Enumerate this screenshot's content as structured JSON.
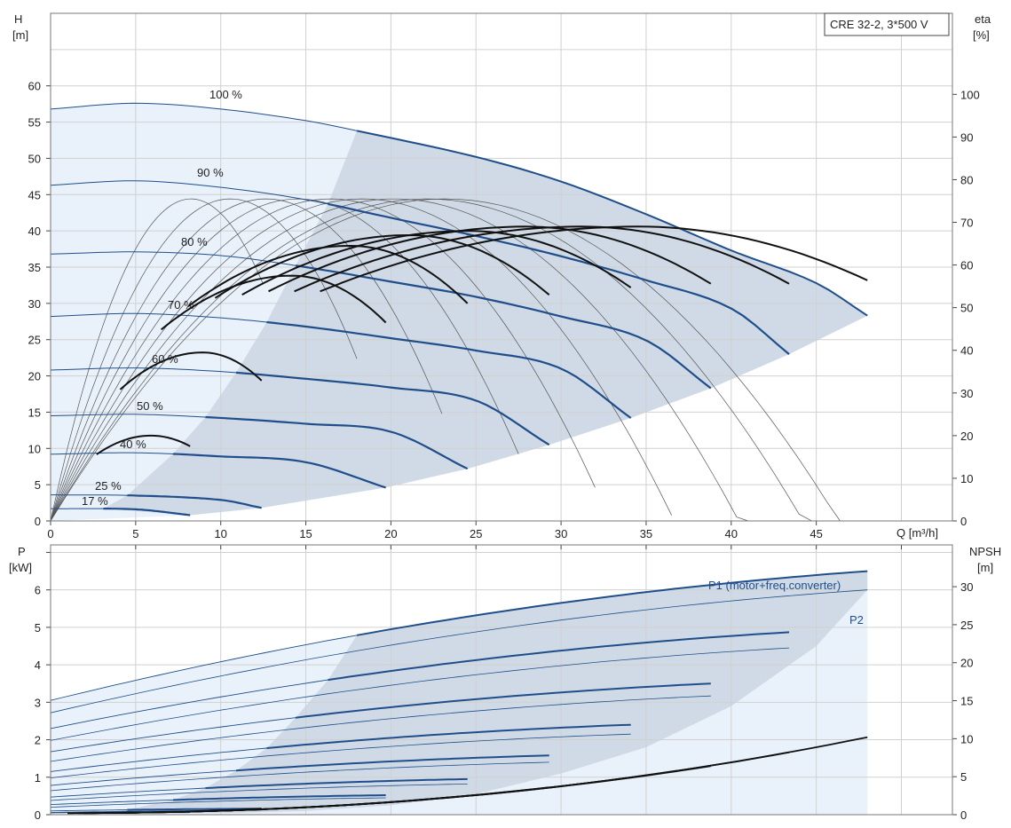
{
  "title_box": "CRE 32-2, 3*500 V",
  "colors": {
    "range_light": "#e9f2fb",
    "range_dark": "#cfdae6",
    "blue_curve": "#1f4e8a",
    "thin_curve": "#555555",
    "eff_curve": "#111111",
    "grid": "#d0d0d0"
  },
  "chart_data": [
    {
      "id": "top",
      "type": "line",
      "xlabel": "Q [m³/h]",
      "ylabel_left": [
        "H",
        "[m]"
      ],
      "ylabel_right": [
        "eta",
        "[%]"
      ],
      "xlim": [
        0,
        53
      ],
      "ylim_left": [
        0,
        70
      ],
      "ylim_right": [
        0,
        119
      ],
      "xticks": [
        0,
        5,
        10,
        15,
        20,
        25,
        30,
        35,
        40,
        45
      ],
      "yticks_left": [
        0,
        5,
        10,
        15,
        20,
        25,
        30,
        35,
        40,
        45,
        50,
        55,
        60
      ],
      "yticks_right": [
        0,
        10,
        20,
        30,
        40,
        50,
        60,
        70,
        80,
        90,
        100
      ],
      "grid": true,
      "head_curves": [
        {
          "label": "100 %",
          "points": [
            [
              0,
              56.8
            ],
            [
              5,
              57.6
            ],
            [
              10,
              56.8
            ],
            [
              15,
              55.2
            ],
            [
              18,
              53.8
            ],
            [
              25,
              50.2
            ],
            [
              30,
              46.8
            ],
            [
              35,
              42.3
            ],
            [
              40,
              37.3
            ],
            [
              45,
              32.8
            ],
            [
              48,
              28.3
            ]
          ],
          "bold_from": 18
        },
        {
          "label": "90 %",
          "points": [
            [
              0,
              46.3
            ],
            [
              5,
              46.9
            ],
            [
              10,
              46
            ],
            [
              15,
              44.3
            ],
            [
              20,
              41.8
            ],
            [
              25,
              39.3
            ],
            [
              30,
              36.5
            ],
            [
              35,
              33.2
            ],
            [
              40,
              29.3
            ],
            [
              43.4,
              23
            ]
          ],
          "bold_from": 16.3
        },
        {
          "label": "80 %",
          "points": [
            [
              0,
              36.8
            ],
            [
              5,
              37.1
            ],
            [
              10,
              36.6
            ],
            [
              15,
              35
            ],
            [
              20,
              33
            ],
            [
              25,
              30.9
            ],
            [
              30,
              28.2
            ],
            [
              35,
              24.9
            ],
            [
              38.8,
              18.3
            ]
          ],
          "bold_from": 14.4
        },
        {
          "label": "70 %",
          "points": [
            [
              0,
              28.2
            ],
            [
              5,
              28.6
            ],
            [
              10,
              28
            ],
            [
              15,
              26.8
            ],
            [
              20,
              25.2
            ],
            [
              25,
              23.5
            ],
            [
              30,
              21
            ],
            [
              34.1,
              14.2
            ]
          ],
          "bold_from": 12.7
        },
        {
          "label": "60 %",
          "points": [
            [
              0,
              20.8
            ],
            [
              5,
              21.1
            ],
            [
              10,
              20.6
            ],
            [
              15,
              19.6
            ],
            [
              20,
              18.4
            ],
            [
              25,
              16.6
            ],
            [
              29.3,
              10.5
            ]
          ],
          "bold_from": 10.9
        },
        {
          "label": "50 %",
          "points": [
            [
              0,
              14.5
            ],
            [
              5,
              14.7
            ],
            [
              10,
              14.2
            ],
            [
              15,
              13.4
            ],
            [
              20,
              12.3
            ],
            [
              24.5,
              7.2
            ]
          ],
          "bold_from": 9.1
        },
        {
          "label": "40 %",
          "points": [
            [
              0,
              9.2
            ],
            [
              5,
              9.4
            ],
            [
              10,
              8.9
            ],
            [
              15,
              8.1
            ],
            [
              19.7,
              4.6
            ]
          ],
          "bold_from": 7.2
        },
        {
          "label": "25 %",
          "points": [
            [
              0,
              3.6
            ],
            [
              5,
              3.5
            ],
            [
              10,
              2.9
            ],
            [
              12.4,
              1.8
            ]
          ],
          "bold_from": 4.5
        },
        {
          "label": "17 %",
          "points": [
            [
              0,
              1.7
            ],
            [
              5,
              1.6
            ],
            [
              8.2,
              0.8
            ]
          ],
          "bold_from": 3.1
        }
      ],
      "eta_peaks": [
        {
          "qmax": 8.2,
          "peak": 20,
          "qend": 8.2,
          "eta_end": 17.5
        },
        {
          "qmax": 12.4,
          "peak": 39.5,
          "qend": 12.4,
          "eta_end": 32.9
        },
        {
          "qmax": 19.7,
          "peak": 57.5,
          "qend": 19.7,
          "eta_end": 46.5
        },
        {
          "qmax": 24.5,
          "peak": 64.5,
          "qend": 24.5,
          "eta_end": 51
        },
        {
          "qmax": 29.3,
          "peak": 67,
          "qend": 29.3,
          "eta_end": 53
        },
        {
          "qmax": 34.1,
          "peak": 68,
          "qend": 34.1,
          "eta_end": 54.7
        },
        {
          "qmax": 38.8,
          "peak": 69,
          "qend": 38.8,
          "eta_end": 55.6
        },
        {
          "qmax": 43.4,
          "peak": 69,
          "qend": 43.4,
          "eta_end": 55.6
        },
        {
          "qmax": 48,
          "peak": 69,
          "qend": 48,
          "eta_end": 56.4
        }
      ],
      "eta_ref_curves": [
        {
          "qmax": 12.5,
          "peak": 75.5
        },
        {
          "qmax": 18,
          "peak": 75.5
        },
        {
          "qmax": 23,
          "peak": 75.5
        },
        {
          "qmax": 27.5,
          "peak": 75.5
        },
        {
          "qmax": 32,
          "peak": 75.5
        },
        {
          "qmax": 36.5,
          "peak": 75.5
        },
        {
          "qmax": 41,
          "peak": 75.5
        },
        {
          "qmax": 45.5,
          "peak": 75.5
        },
        {
          "qmax": 48,
          "peak": 75.5
        }
      ]
    },
    {
      "id": "bottom",
      "type": "line",
      "ylabel_left": [
        "P",
        "[kW]"
      ],
      "ylabel_right": [
        "NPSH",
        "[m]"
      ],
      "xlim": [
        0,
        53
      ],
      "ylim_left": [
        0,
        7.2
      ],
      "ylim_right": [
        0,
        35.5
      ],
      "yticks_left": [
        0,
        1,
        2,
        3,
        4,
        5,
        6
      ],
      "yticks_right": [
        0,
        5,
        10,
        15,
        20,
        25,
        30
      ],
      "grid": true,
      "series_labels": {
        "p1": "P1 (motor+freq.converter)",
        "p2": "P2"
      },
      "p1_curves": [
        {
          "qmax": 48,
          "p0": 3.05,
          "pend": 6.5,
          "bold_from": 18
        },
        {
          "qmax": 43.4,
          "p0": 2.3,
          "pend": 4.87,
          "bold_from": 16.3
        },
        {
          "qmax": 38.8,
          "p0": 1.68,
          "pend": 3.5,
          "bold_from": 14.4
        },
        {
          "qmax": 34.1,
          "p0": 1.15,
          "pend": 2.4,
          "bold_from": 12.7
        },
        {
          "qmax": 29.3,
          "p0": 0.78,
          "pend": 1.58,
          "bold_from": 10.9
        },
        {
          "qmax": 24.5,
          "p0": 0.47,
          "pend": 0.95,
          "bold_from": 9.1
        },
        {
          "qmax": 19.7,
          "p0": 0.27,
          "pend": 0.52,
          "bold_from": 7.2
        },
        {
          "qmax": 12.4,
          "p0": 0.1,
          "pend": 0.16,
          "bold_from": 4.5
        },
        {
          "qmax": 8.2,
          "p0": 0.05,
          "pend": 0.07,
          "bold_from": 3.1
        }
      ],
      "p2_curves": [
        {
          "qmax": 48,
          "p0": 2.72,
          "pend": 6.0
        },
        {
          "qmax": 43.4,
          "p0": 1.98,
          "pend": 4.45
        },
        {
          "qmax": 38.8,
          "p0": 1.42,
          "pend": 3.17
        },
        {
          "qmax": 34.1,
          "p0": 0.98,
          "pend": 2.15
        },
        {
          "qmax": 29.3,
          "p0": 0.64,
          "pend": 1.4
        },
        {
          "qmax": 24.5,
          "p0": 0.38,
          "pend": 0.82
        },
        {
          "qmax": 19.7,
          "p0": 0.2,
          "pend": 0.45
        },
        {
          "qmax": 12.4,
          "p0": 0.06,
          "pend": 0.12
        }
      ],
      "npsh_curves": [
        {
          "qmax": 48,
          "npsh0": 0.2,
          "npshend": 10.2
        },
        {
          "qmax": 43.4,
          "npsh0": 0.2,
          "npshend": 8.2
        },
        {
          "qmax": 38.8,
          "npsh0": 0.2,
          "npshend": 6.4
        },
        {
          "qmax": 34.1,
          "npsh0": 0.2,
          "npshend": 4.9
        },
        {
          "qmax": 29.3,
          "npsh0": 0.2,
          "npshend": 3.6
        },
        {
          "qmax": 24.5,
          "npsh0": 0.2,
          "npshend": 2.5
        },
        {
          "qmax": 19.7,
          "npsh0": 0.2,
          "npshend": 1.6
        },
        {
          "qmax": 12.4,
          "npsh0": 0.2,
          "npshend": 0.8
        }
      ]
    }
  ]
}
